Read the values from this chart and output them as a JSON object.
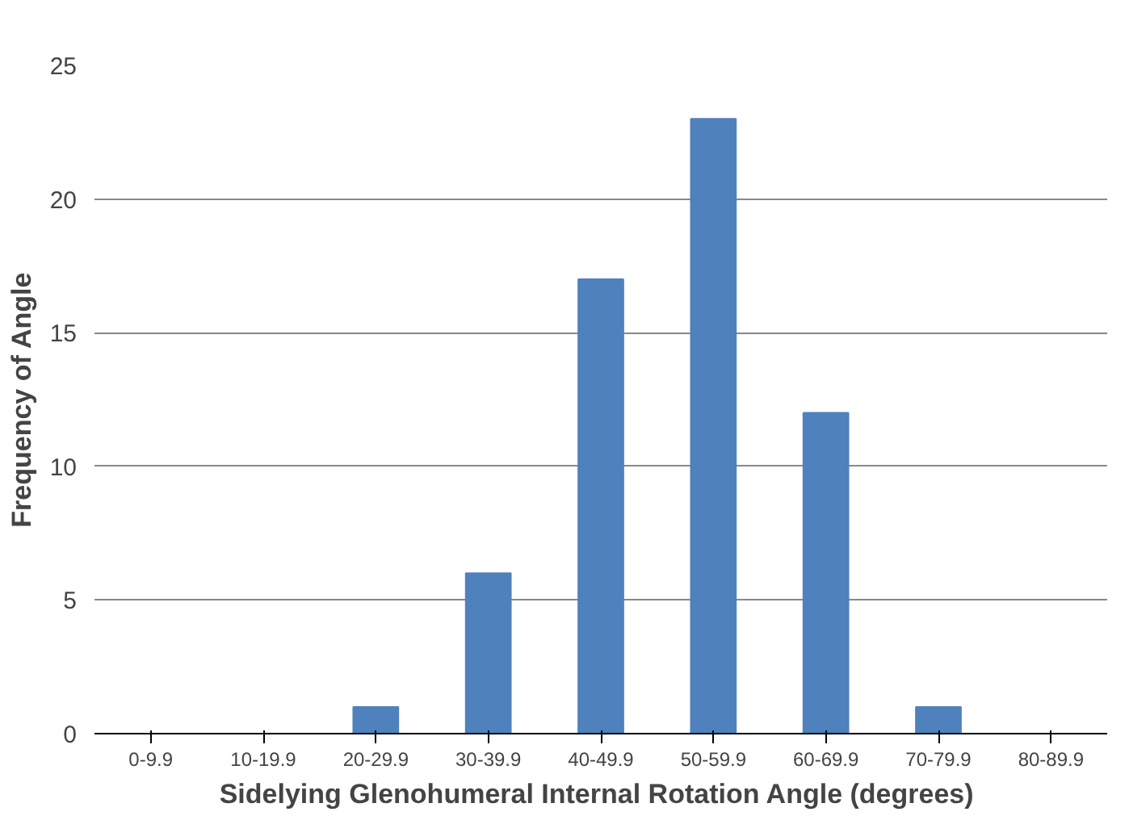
{
  "chart_data": {
    "type": "bar",
    "xlabel": "Sidelying Glenohumeral  Internal Rotation Angle (degrees)",
    "ylabel": "Frequency of Angle",
    "categories": [
      "0-9.9",
      "10-19.9",
      "20-29.9",
      "30-39.9",
      "40-49.9",
      "50-59.9",
      "60-69.9",
      "70-79.9",
      "80-89.9"
    ],
    "values": [
      0,
      0,
      1,
      6,
      17,
      23,
      12,
      1,
      0
    ],
    "color": "#4f81bd",
    "ylim": [
      0,
      25
    ],
    "yticks": [
      0,
      5,
      10,
      15,
      20,
      25
    ],
    "grid": "y"
  }
}
